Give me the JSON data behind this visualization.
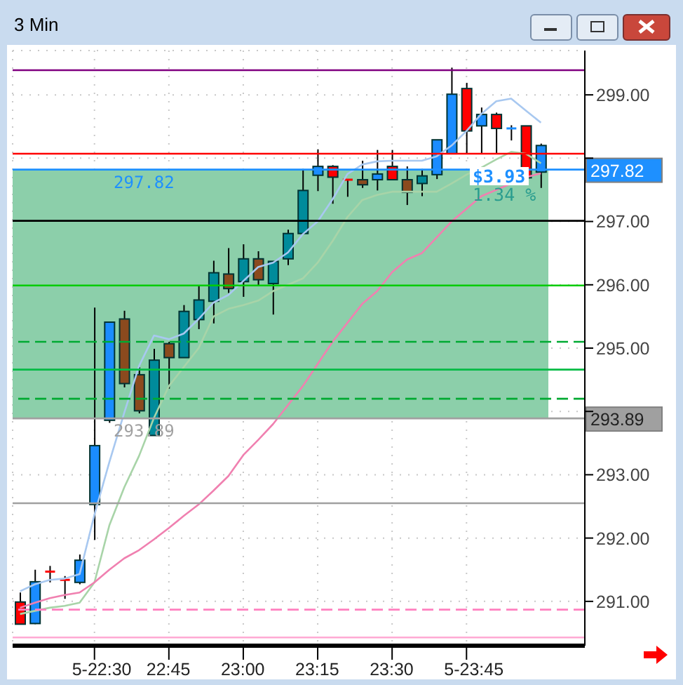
{
  "chart_data": {
    "type": "candlestick",
    "title": "3 Min",
    "categories": [
      null,
      null,
      null,
      null,
      null,
      "5-22:30",
      null,
      null,
      null,
      null,
      "22:45",
      null,
      null,
      null,
      null,
      "23:00",
      null,
      null,
      null,
      null,
      "23:15",
      null,
      null,
      null,
      null,
      "23:30",
      null,
      null,
      null,
      null,
      "5-23:45",
      null,
      null,
      null,
      null,
      null
    ],
    "ohlc": [
      [
        290.99,
        291.14,
        290.64,
        290.64
      ],
      [
        290.65,
        291.5,
        290.64,
        291.31
      ],
      [
        291.47,
        291.56,
        291.3,
        291.45
      ],
      [
        291.34,
        291.4,
        291.04,
        291.31
      ],
      [
        291.3,
        291.74,
        291.27,
        291.65
      ],
      [
        292.53,
        295.64,
        291.97,
        293.46
      ],
      [
        293.86,
        295.41,
        293.82,
        295.41
      ],
      [
        295.46,
        295.59,
        294.38,
        294.44
      ],
      [
        294.58,
        294.7,
        293.97,
        294.01
      ],
      [
        293.62,
        294.99,
        293.62,
        294.81
      ],
      [
        295.07,
        295.1,
        294.36,
        294.85
      ],
      [
        294.85,
        295.68,
        294.85,
        295.58
      ],
      [
        295.45,
        295.98,
        295.3,
        295.76
      ],
      [
        295.74,
        296.38,
        295.39,
        296.19
      ],
      [
        296.17,
        296.58,
        295.87,
        295.94
      ],
      [
        296.05,
        296.64,
        295.81,
        296.41
      ],
      [
        296.41,
        296.53,
        295.98,
        296.08
      ],
      [
        296.02,
        296.37,
        295.53,
        296.37
      ],
      [
        296.41,
        296.87,
        296.31,
        296.81
      ],
      [
        296.81,
        297.83,
        296.81,
        297.49
      ],
      [
        297.73,
        298.14,
        297.48,
        297.87
      ],
      [
        297.87,
        297.89,
        297.28,
        297.7
      ],
      [
        297.66,
        297.66,
        297.39,
        297.65
      ],
      [
        297.66,
        297.96,
        297.53,
        297.58
      ],
      [
        297.66,
        298.13,
        297.49,
        297.75
      ],
      [
        297.87,
        298.13,
        297.66,
        297.66
      ],
      [
        297.66,
        297.87,
        297.26,
        297.46
      ],
      [
        297.6,
        297.83,
        297.4,
        297.72
      ],
      [
        297.74,
        298.29,
        297.67,
        298.29
      ],
      [
        298.07,
        299.43,
        298.07,
        299.01
      ],
      [
        299.1,
        299.19,
        298.07,
        298.43
      ],
      [
        298.51,
        298.8,
        298.07,
        298.69
      ],
      [
        298.69,
        298.72,
        298.07,
        298.47
      ],
      [
        298.47,
        298.52,
        298.28,
        298.47
      ],
      [
        298.51,
        298.51,
        297.69,
        297.69
      ],
      [
        297.78,
        298.23,
        297.53,
        298.2
      ]
    ],
    "colors": [
      "#ff0000",
      "#1a8cff",
      "#ff0000",
      "#ff0000",
      "#1a8cff",
      "#1a8cff",
      "#1a8cff",
      "#8b4a1e",
      "#8b4a1e",
      "#008b9b",
      "#8b4a1e",
      "#008b9b",
      "#008b9b",
      "#008b9b",
      "#8b4a1e",
      "#008b9b",
      "#8b4a1e",
      "#008b9b",
      "#008b9b",
      "#008b9b",
      "#1a8cff",
      "#ff0000",
      "#ff0000",
      "#8b4a1e",
      "#1a8cff",
      "#ff0000",
      "#8b4a1e",
      "#008b9b",
      "#1a8cff",
      "#1a8cff",
      "#ff0000",
      "#1a8cff",
      "#ff0000",
      "#1a8cff",
      "#ff0000",
      "#1a8cff"
    ],
    "series": [
      {
        "type": "line",
        "color": "#a8c8f0",
        "values": [
          291.16,
          291.27,
          291.34,
          291.36,
          291.43,
          292.37,
          293.2,
          293.98,
          294.72,
          295.2,
          295.14,
          295.23,
          295.46,
          295.72,
          295.84,
          296.06,
          296.28,
          296.35,
          296.51,
          296.8,
          297.0,
          297.35,
          297.75,
          297.9,
          297.95,
          297.96,
          297.96,
          297.96,
          298.03,
          298.2,
          298.43,
          298.7,
          298.9,
          298.94,
          298.75,
          298.56
        ]
      },
      {
        "type": "line",
        "color": "#a8d4a8",
        "values": [
          290.8,
          290.85,
          290.9,
          290.93,
          290.98,
          291.3,
          292.2,
          292.8,
          293.3,
          293.9,
          294.4,
          294.7,
          295.0,
          295.5,
          295.62,
          295.68,
          295.75,
          295.9,
          296.0,
          296.1,
          296.35,
          296.69,
          297.07,
          297.34,
          297.42,
          297.47,
          297.47,
          297.47,
          297.47,
          297.6,
          297.74,
          297.85,
          297.98,
          298.1,
          298.07,
          297.92
        ]
      },
      {
        "type": "line",
        "color": "#f080b0",
        "values": [
          290.9,
          290.98,
          291.05,
          291.1,
          291.14,
          291.3,
          291.5,
          291.68,
          291.81,
          291.98,
          292.16,
          292.35,
          292.53,
          292.75,
          292.98,
          293.31,
          293.55,
          293.8,
          294.1,
          294.4,
          294.75,
          295.1,
          295.4,
          295.7,
          295.9,
          296.2,
          296.4,
          296.5,
          296.75,
          297.0,
          297.2,
          297.4,
          297.5,
          297.6,
          297.7,
          297.76
        ]
      }
    ],
    "ylim": [
      290.3,
      299.7
    ],
    "yticks": [
      {
        "value": 291,
        "label": "291.00"
      },
      {
        "value": 292,
        "label": "292.00"
      },
      {
        "value": 293,
        "label": "293.00"
      },
      {
        "value": 294,
        "label": null
      },
      {
        "value": 295,
        "label": "295.00"
      },
      {
        "value": 296,
        "label": "296.00"
      },
      {
        "value": 297,
        "label": "297.00"
      },
      {
        "value": 298,
        "label": null
      },
      {
        "value": 299,
        "label": "299.00"
      }
    ],
    "grid": true,
    "bands": [
      {
        "axis": "y",
        "from": 293.89,
        "to": 297.82,
        "color": "#8ccfaa"
      }
    ],
    "ref_lines": [
      {
        "axis": "y",
        "value": 299.39,
        "color": "#800080"
      },
      {
        "axis": "y",
        "value": 298.07,
        "color": "#ff0000"
      },
      {
        "axis": "y",
        "value": 297.82,
        "color": "#1e90ff",
        "label": "297.82"
      },
      {
        "axis": "y",
        "value": 297.01,
        "color": "#000000"
      },
      {
        "axis": "y",
        "value": 295.99,
        "color": "#00cc00"
      },
      {
        "axis": "y",
        "value": 295.1,
        "color": "#00aa33",
        "line_style": "dashed"
      },
      {
        "axis": "y",
        "value": 294.66,
        "color": "#00bb44"
      },
      {
        "axis": "y",
        "value": 294.2,
        "color": "#00aa33",
        "line_style": "dashed"
      },
      {
        "axis": "y",
        "value": 293.89,
        "color": "#a0a0a0",
        "label": "293.89"
      },
      {
        "axis": "y",
        "value": 292.55,
        "color": "#a0a0a0"
      },
      {
        "axis": "y",
        "value": 290.87,
        "color": "#ff80c0",
        "line_style": "dashed"
      },
      {
        "axis": "y",
        "value": 290.43,
        "color": "#ffaad4"
      }
    ],
    "annotations": [
      "$3.93",
      "1.34 %"
    ]
  }
}
